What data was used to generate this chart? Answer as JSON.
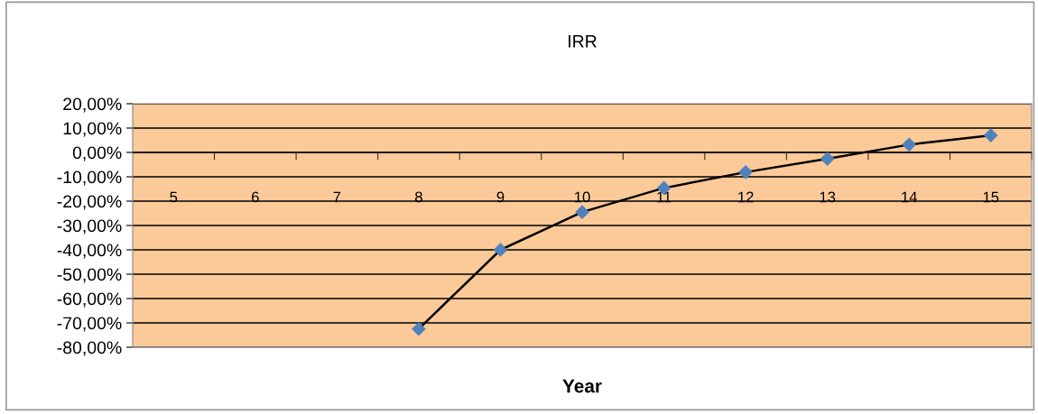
{
  "chart_data": {
    "type": "line",
    "title": "IRR",
    "xlabel": "Year",
    "categories": [
      "5",
      "6",
      "7",
      "8",
      "9",
      "10",
      "11",
      "12",
      "13",
      "14",
      "15"
    ],
    "series": [
      {
        "color": "#000000",
        "colors": [
          "#4f81bd",
          "#4f81bd",
          "#4f81bd",
          "#4f81bd",
          "#4f81bd",
          "#4f81bd",
          "#4f81bd",
          "#4f81bd",
          "#4f81bd",
          "#4f81bd",
          "#4f81bd"
        ],
        "values": [
          null,
          null,
          null,
          -72.5,
          -40,
          -24.5,
          -14.6,
          -8.1,
          -2.6,
          3.2,
          7.0
        ]
      }
    ],
    "ylim": [
      -80,
      20
    ],
    "yticks": [
      {
        "value": -80,
        "label": "-80,00%"
      },
      {
        "value": -70,
        "label": "-70,00%"
      },
      {
        "value": -60,
        "label": "-60,00%"
      },
      {
        "value": -50,
        "label": "-50,00%"
      },
      {
        "value": -40,
        "label": "-40,00%"
      },
      {
        "value": -30,
        "label": "-30,00%"
      },
      {
        "value": -20,
        "label": "-20,00%"
      },
      {
        "value": -10,
        "label": "-10,00%"
      },
      {
        "value": 0,
        "label": "0,00%"
      },
      {
        "value": 10,
        "label": "10,00%"
      },
      {
        "value": 20,
        "label": "20,00%"
      }
    ],
    "grid": "y",
    "marker": "diamond",
    "line_style": "solid"
  }
}
